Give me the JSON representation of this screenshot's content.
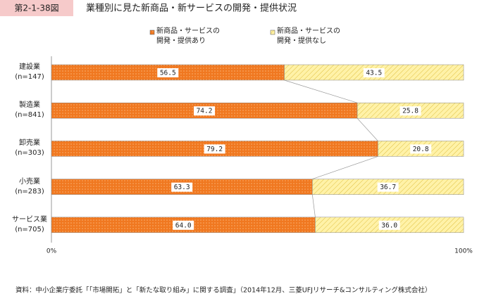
{
  "header": {
    "figure_number": "第2-1-38図",
    "title": "業種別に見た新商品・新サービスの開発・提供状況"
  },
  "chart_data": {
    "type": "stacked-bar-horizontal",
    "categories": [
      "建設業\n(n=147)",
      "製造業\n(n=841)",
      "卸売業\n(n=303)",
      "小売業\n(n=283)",
      "サービス業\n(n=705)"
    ],
    "series": [
      {
        "name": "新商品・サービスの\n開発・提供あり",
        "color": "#f07820",
        "values": [
          56.5,
          74.2,
          79.2,
          63.3,
          64
        ],
        "value_labels": [
          "56.5",
          "74.2",
          "79.2",
          "63.3",
          "64.0"
        ]
      },
      {
        "name": "新商品・サービスの\n開発・提供なし",
        "color": "#fff2a8",
        "values": [
          43.5,
          25.8,
          20.8,
          36.7,
          36
        ],
        "value_labels": [
          "43.5",
          "25.8",
          "20.8",
          "36.7",
          "36.0"
        ]
      }
    ],
    "xlim": [
      0,
      100
    ],
    "xticks": [
      {
        "value": 0,
        "label": "0%"
      },
      {
        "value": 100,
        "label": "100%"
      }
    ]
  },
  "footer": {
    "source": "資料：中小企業庁委託「「市場開拓」と「新たな取り組み」に関する調査」（2014年12月、三菱UFJリサーチ&コンサルティング株式会社）"
  }
}
